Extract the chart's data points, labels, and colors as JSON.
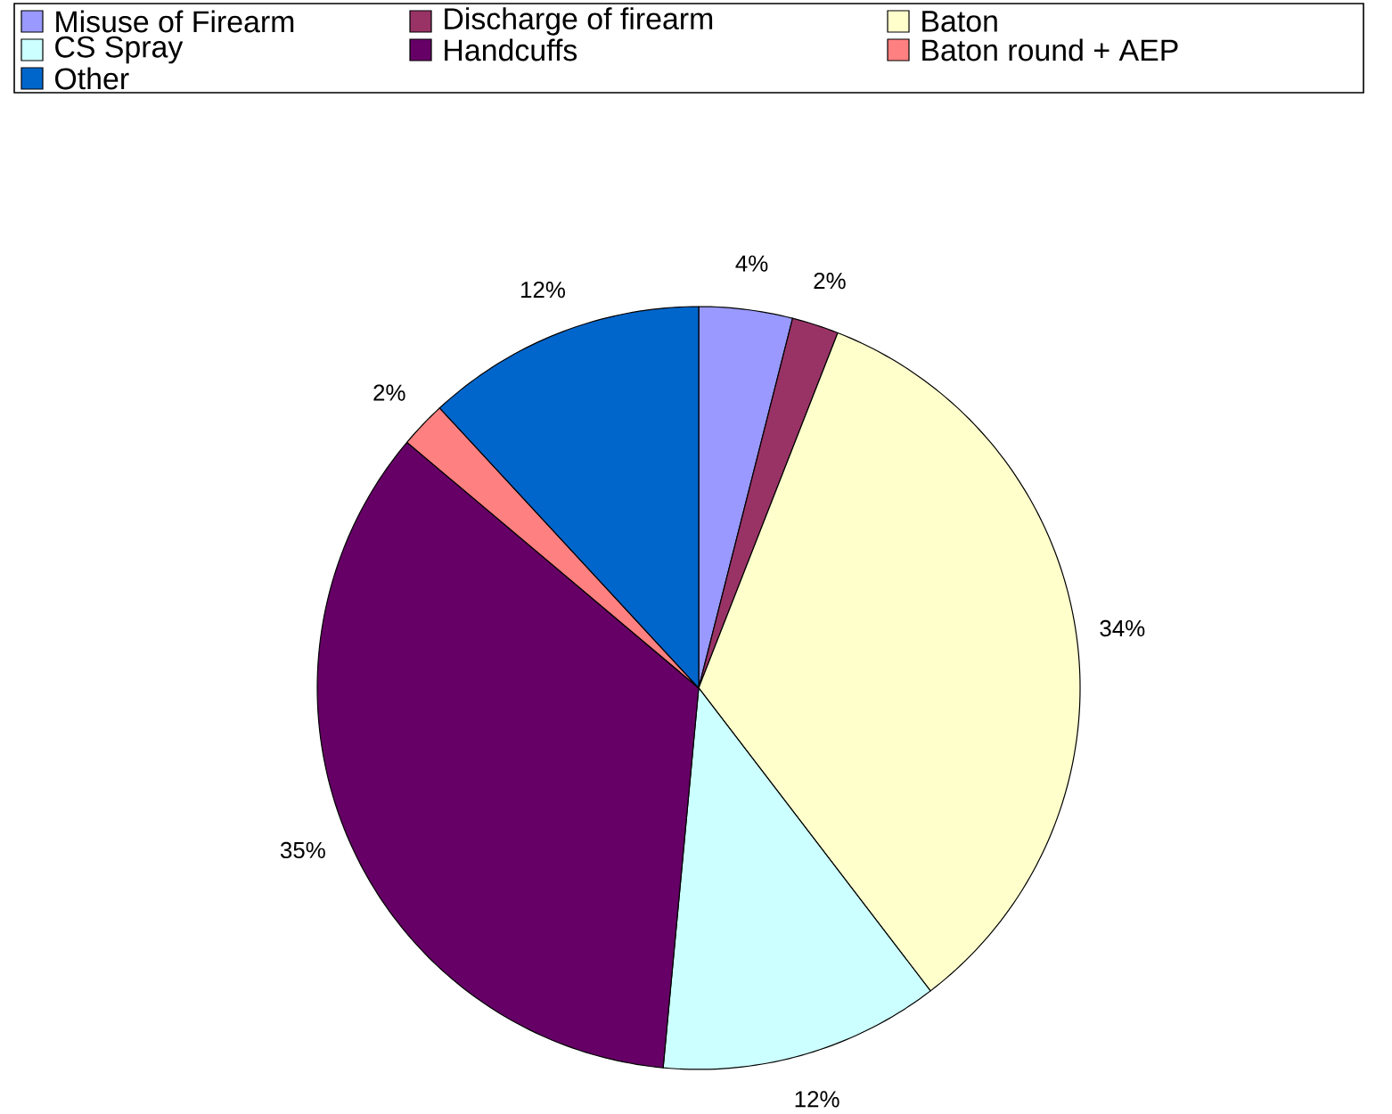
{
  "chart_data": {
    "type": "pie",
    "categories": [
      "Misuse of Firearm",
      "Discharge of firearm",
      "Baton",
      "CS Spray",
      "Handcuffs",
      "Baton round + AEP",
      "Other"
    ],
    "values": [
      4,
      2,
      34,
      12,
      35,
      2,
      12
    ],
    "colors": [
      "#9999ff",
      "#993366",
      "#ffffcc",
      "#ccffff",
      "#660066",
      "#ff8080",
      "#0066cc"
    ],
    "value_labels": [
      "4%",
      "2%",
      "34%",
      "12%",
      "35%",
      "2%",
      "12%"
    ],
    "legend": "top"
  }
}
